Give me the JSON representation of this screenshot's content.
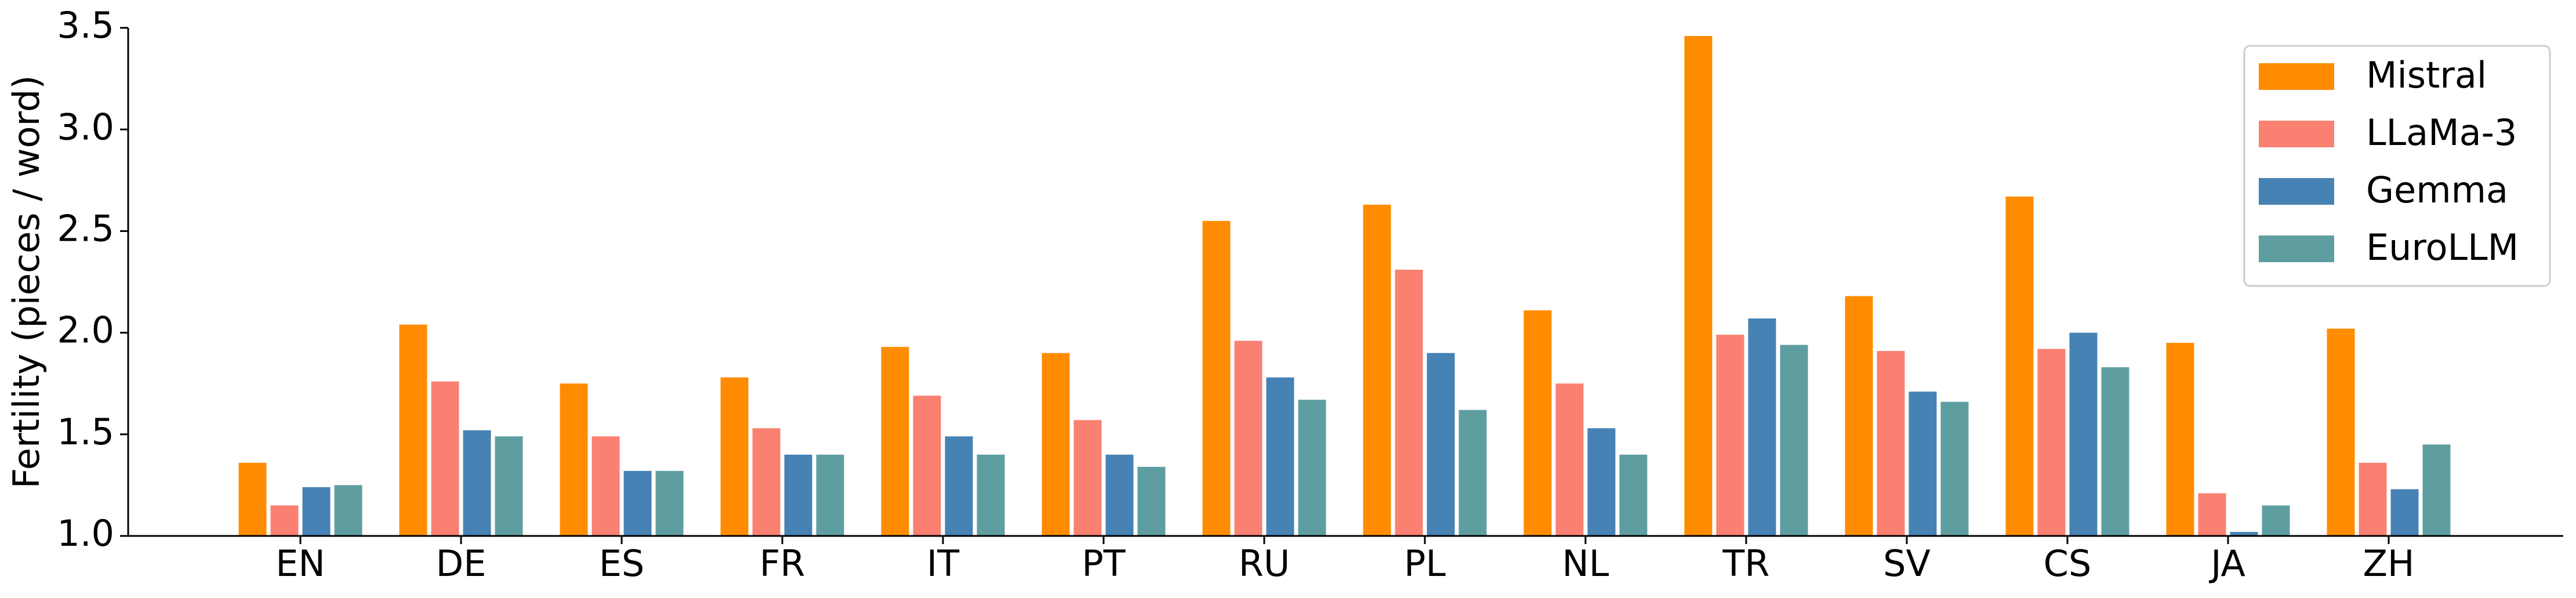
{
  "chart_data": {
    "type": "bar",
    "ylabel": "Fertility (pieces / word)",
    "categories": [
      "EN",
      "DE",
      "ES",
      "FR",
      "IT",
      "PT",
      "RU",
      "PL",
      "NL",
      "TR",
      "SV",
      "CS",
      "JA",
      "ZH"
    ],
    "series": [
      {
        "name": "Mistral",
        "color": "#ff8c00",
        "values": [
          1.36,
          2.04,
          1.75,
          1.78,
          1.93,
          1.9,
          2.55,
          2.63,
          2.11,
          3.46,
          2.18,
          2.67,
          1.95,
          2.02
        ]
      },
      {
        "name": "LLaMa-3",
        "color": "#fa8072",
        "values": [
          1.15,
          1.76,
          1.49,
          1.53,
          1.69,
          1.57,
          1.96,
          2.31,
          1.75,
          1.99,
          1.91,
          1.92,
          1.21,
          1.36
        ]
      },
      {
        "name": "Gemma",
        "color": "#4682b4",
        "values": [
          1.24,
          1.52,
          1.32,
          1.4,
          1.49,
          1.4,
          1.78,
          1.9,
          1.53,
          2.07,
          1.71,
          2.0,
          1.02,
          1.23
        ]
      },
      {
        "name": "EuroLLM",
        "color": "#5f9ea0",
        "values": [
          1.25,
          1.49,
          1.32,
          1.4,
          1.4,
          1.34,
          1.67,
          1.62,
          1.4,
          1.94,
          1.66,
          1.83,
          1.15,
          1.45
        ]
      }
    ],
    "ylim": [
      1.0,
      3.5
    ],
    "yticks": [
      {
        "value": 1.0,
        "label": "1.0"
      },
      1.5,
      {
        "value": 2.0,
        "label": "2.0"
      },
      2.5,
      {
        "value": 3.0,
        "label": "3.0"
      },
      3.5
    ],
    "legend": "upper right"
  }
}
